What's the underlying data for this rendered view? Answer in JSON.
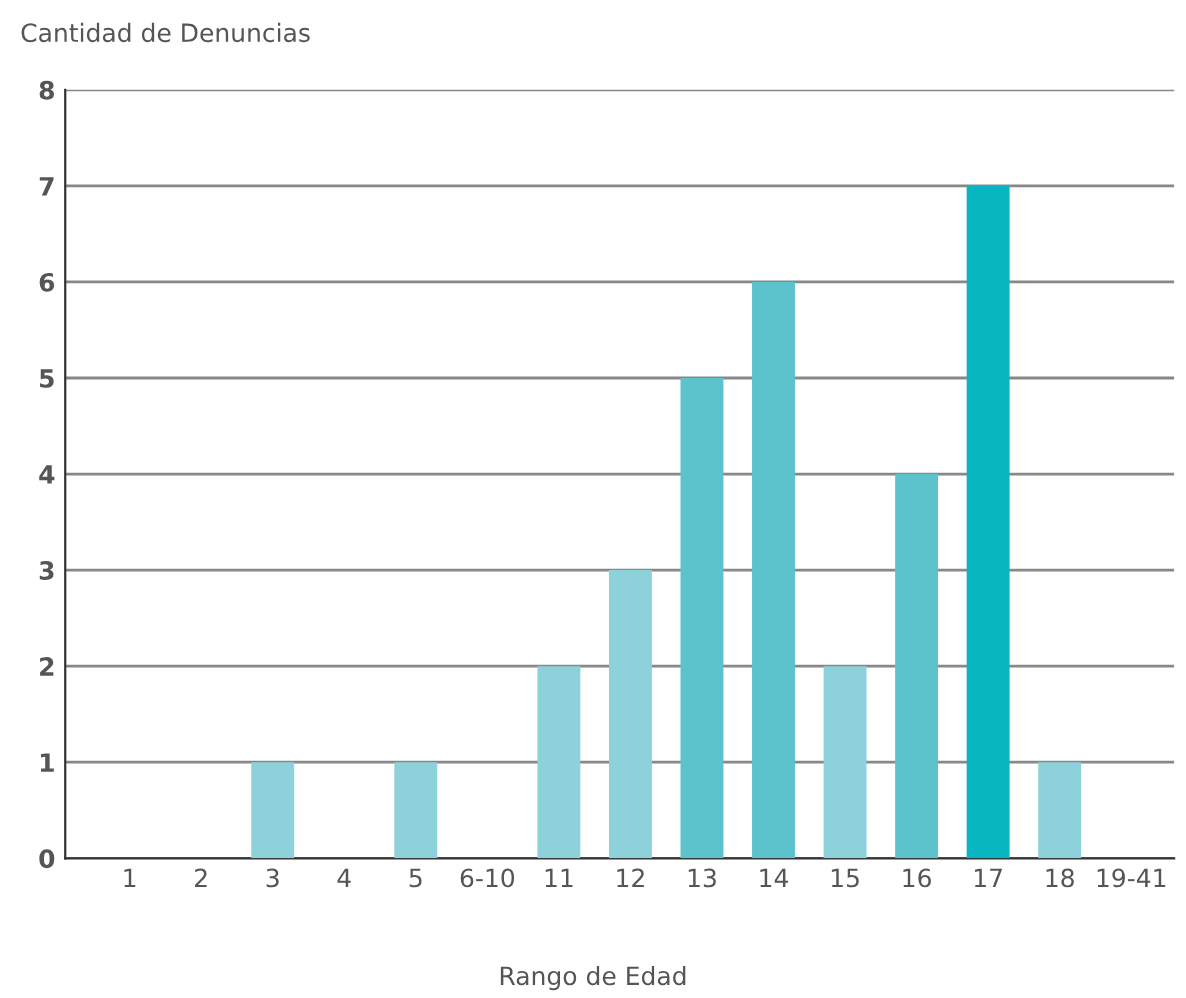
{
  "chart_data": {
    "type": "bar",
    "title": "Cantidad de Denuncias",
    "xlabel": "Rango de Edad",
    "categories": [
      "1",
      "2",
      "3",
      "4",
      "5",
      "6-10",
      "11",
      "12",
      "13",
      "14",
      "15",
      "16",
      "17",
      "18",
      "19-41"
    ],
    "values": [
      0,
      0,
      1,
      0,
      1,
      0,
      2,
      3,
      5,
      6,
      2,
      4,
      7,
      1,
      0
    ],
    "colors": [
      "#8dd2da",
      "#8dd2da",
      "#8dd2da",
      "#8dd2da",
      "#8dd2da",
      "#8dd2da",
      "#8dd2da",
      "#8dd2da",
      "#5cc3cd",
      "#5cc3cd",
      "#8dd2da",
      "#5cc3cd",
      "#08b6c2",
      "#8dd2da",
      "#8dd2da"
    ],
    "ylim": [
      0,
      8
    ],
    "yticks": [
      0,
      1,
      2,
      3,
      4,
      5,
      6,
      7,
      8
    ],
    "grid": "y"
  }
}
